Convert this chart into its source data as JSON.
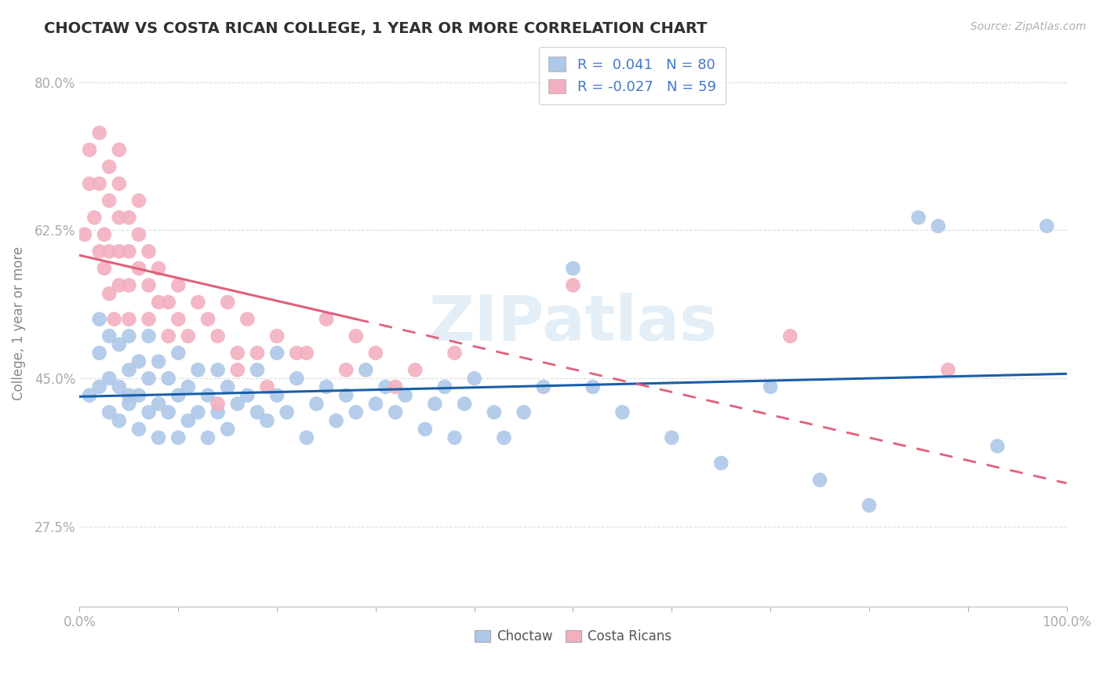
{
  "title": "CHOCTAW VS COSTA RICAN COLLEGE, 1 YEAR OR MORE CORRELATION CHART",
  "source": "Source: ZipAtlas.com",
  "ylabel": "College, 1 year or more",
  "xlim": [
    0.0,
    1.0
  ],
  "ylim": [
    0.18,
    0.85
  ],
  "ytick_vals": [
    0.275,
    0.45,
    0.625,
    0.8
  ],
  "yticklabels": [
    "27.5%",
    "45.0%",
    "62.5%",
    "80.0%"
  ],
  "blue_R": 0.041,
  "blue_N": 80,
  "pink_R": -0.027,
  "pink_N": 59,
  "blue_color": "#adc8e8",
  "pink_color": "#f2afc0",
  "blue_line_color": "#1a5fa8",
  "pink_line_color": "#e0607a",
  "watermark": "ZIPatlas",
  "legend_label_blue": "Choctaw",
  "legend_label_pink": "Costa Ricans",
  "background_color": "#ffffff",
  "grid_color": "#dddddd",
  "title_color": "#303030",
  "axis_label_color": "#888888",
  "tick_color_y": "#5588cc",
  "tick_color_x": "#888888",
  "blue_scatter_x": [
    0.01,
    0.02,
    0.02,
    0.02,
    0.03,
    0.03,
    0.03,
    0.04,
    0.04,
    0.04,
    0.05,
    0.05,
    0.05,
    0.05,
    0.06,
    0.06,
    0.06,
    0.07,
    0.07,
    0.07,
    0.08,
    0.08,
    0.08,
    0.09,
    0.09,
    0.1,
    0.1,
    0.1,
    0.11,
    0.11,
    0.12,
    0.12,
    0.13,
    0.13,
    0.14,
    0.14,
    0.15,
    0.15,
    0.16,
    0.17,
    0.18,
    0.18,
    0.19,
    0.2,
    0.2,
    0.21,
    0.22,
    0.23,
    0.24,
    0.25,
    0.26,
    0.27,
    0.28,
    0.29,
    0.3,
    0.31,
    0.32,
    0.33,
    0.35,
    0.36,
    0.37,
    0.38,
    0.39,
    0.4,
    0.42,
    0.43,
    0.45,
    0.47,
    0.5,
    0.52,
    0.55,
    0.6,
    0.65,
    0.7,
    0.75,
    0.8,
    0.85,
    0.87,
    0.93,
    0.98
  ],
  "blue_scatter_y": [
    0.43,
    0.44,
    0.48,
    0.52,
    0.41,
    0.45,
    0.5,
    0.4,
    0.44,
    0.49,
    0.42,
    0.46,
    0.5,
    0.43,
    0.39,
    0.43,
    0.47,
    0.41,
    0.45,
    0.5,
    0.38,
    0.42,
    0.47,
    0.41,
    0.45,
    0.38,
    0.43,
    0.48,
    0.4,
    0.44,
    0.41,
    0.46,
    0.38,
    0.43,
    0.41,
    0.46,
    0.39,
    0.44,
    0.42,
    0.43,
    0.41,
    0.46,
    0.4,
    0.43,
    0.48,
    0.41,
    0.45,
    0.38,
    0.42,
    0.44,
    0.4,
    0.43,
    0.41,
    0.46,
    0.42,
    0.44,
    0.41,
    0.43,
    0.39,
    0.42,
    0.44,
    0.38,
    0.42,
    0.45,
    0.41,
    0.38,
    0.41,
    0.44,
    0.58,
    0.44,
    0.41,
    0.38,
    0.35,
    0.44,
    0.33,
    0.3,
    0.64,
    0.63,
    0.37,
    0.63
  ],
  "pink_scatter_x": [
    0.005,
    0.01,
    0.01,
    0.015,
    0.02,
    0.02,
    0.02,
    0.025,
    0.025,
    0.03,
    0.03,
    0.03,
    0.03,
    0.035,
    0.04,
    0.04,
    0.04,
    0.04,
    0.04,
    0.05,
    0.05,
    0.05,
    0.05,
    0.06,
    0.06,
    0.06,
    0.07,
    0.07,
    0.07,
    0.08,
    0.08,
    0.09,
    0.09,
    0.1,
    0.1,
    0.11,
    0.12,
    0.13,
    0.14,
    0.15,
    0.16,
    0.17,
    0.18,
    0.2,
    0.22,
    0.25,
    0.28,
    0.3,
    0.34,
    0.38,
    0.14,
    0.16,
    0.19,
    0.23,
    0.27,
    0.32,
    0.5,
    0.72,
    0.88
  ],
  "pink_scatter_y": [
    0.62,
    0.68,
    0.72,
    0.64,
    0.6,
    0.68,
    0.74,
    0.58,
    0.62,
    0.55,
    0.6,
    0.66,
    0.7,
    0.52,
    0.56,
    0.6,
    0.64,
    0.68,
    0.72,
    0.52,
    0.56,
    0.6,
    0.64,
    0.58,
    0.62,
    0.66,
    0.52,
    0.56,
    0.6,
    0.54,
    0.58,
    0.5,
    0.54,
    0.52,
    0.56,
    0.5,
    0.54,
    0.52,
    0.5,
    0.54,
    0.48,
    0.52,
    0.48,
    0.5,
    0.48,
    0.52,
    0.5,
    0.48,
    0.46,
    0.48,
    0.42,
    0.46,
    0.44,
    0.48,
    0.46,
    0.44,
    0.56,
    0.5,
    0.46
  ],
  "pink_line_x_solid_end": 0.28,
  "pink_line_x_dash_start": 0.28
}
